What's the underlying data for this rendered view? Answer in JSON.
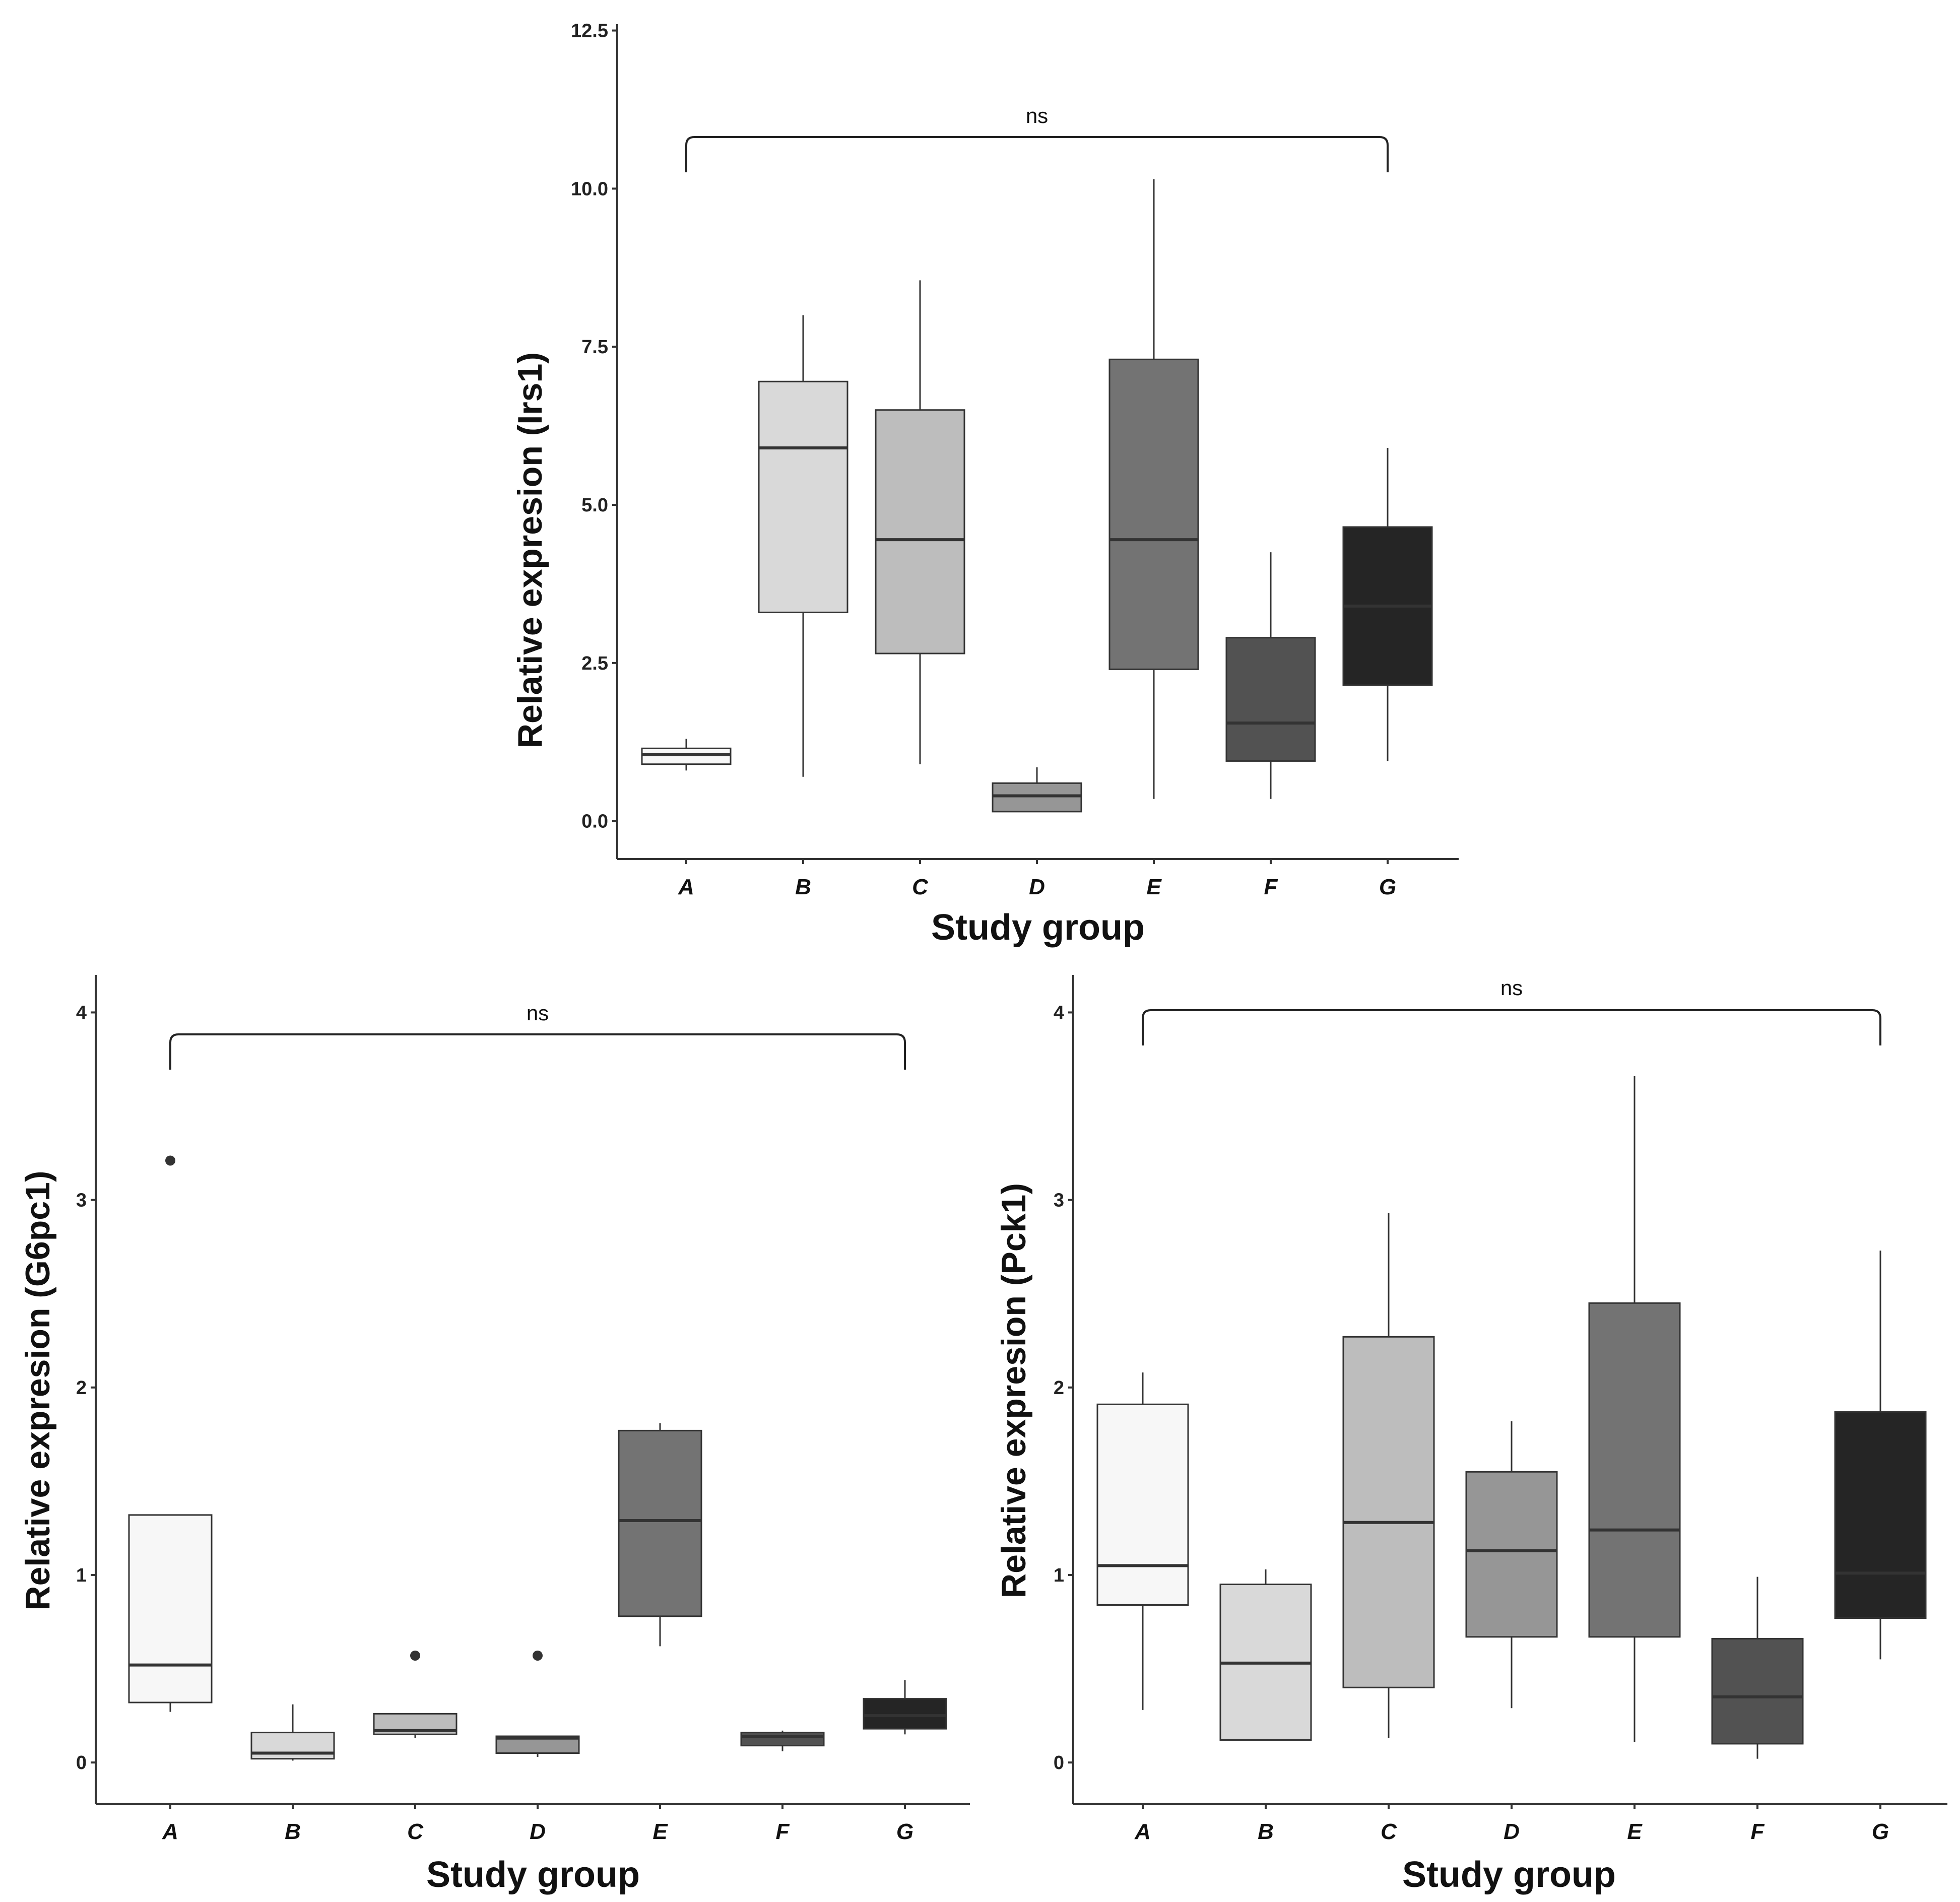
{
  "colors": {
    "A": "#f7f7f7",
    "B": "#d9d9d9",
    "C": "#bdbdbd",
    "D": "#969696",
    "E": "#737373",
    "F": "#525252",
    "G": "#252525",
    "stroke": "#333333"
  },
  "chart_data": [
    {
      "id": "irs1",
      "type": "boxplot",
      "title": "",
      "xlabel": "Study group",
      "ylabel": "Relative expresion (Irs1)",
      "categories": [
        "A",
        "B",
        "C",
        "D",
        "E",
        "F",
        "G"
      ],
      "ylim": [
        -0.6,
        12.6
      ],
      "yticks": [
        "0.0",
        "2.5",
        "5.0",
        "7.5",
        "10.0",
        "12.5"
      ],
      "ytick_values": [
        0,
        2.5,
        5,
        7.5,
        10,
        12.5
      ],
      "boxes": [
        {
          "group": "A",
          "whisker_low": 0.8,
          "q1": 0.9,
          "median": 1.05,
          "q3": 1.15,
          "whisker_high": 1.3,
          "outliers": []
        },
        {
          "group": "B",
          "whisker_low": 0.7,
          "q1": 3.3,
          "median": 5.9,
          "q3": 6.95,
          "whisker_high": 8.0,
          "outliers": []
        },
        {
          "group": "C",
          "whisker_low": 0.9,
          "q1": 2.65,
          "median": 4.45,
          "q3": 6.5,
          "whisker_high": 8.55,
          "outliers": []
        },
        {
          "group": "D",
          "whisker_low": 0.15,
          "q1": 0.15,
          "median": 0.4,
          "q3": 0.6,
          "whisker_high": 0.85,
          "outliers": []
        },
        {
          "group": "E",
          "whisker_low": 0.35,
          "q1": 2.4,
          "median": 4.45,
          "q3": 7.3,
          "whisker_high": 10.15,
          "outliers": []
        },
        {
          "group": "F",
          "whisker_low": 0.35,
          "q1": 0.95,
          "median": 1.55,
          "q3": 2.9,
          "whisker_high": 4.25,
          "outliers": []
        },
        {
          "group": "G",
          "whisker_low": 0.95,
          "q1": 2.15,
          "median": 3.4,
          "q3": 4.65,
          "whisker_high": 5.9,
          "outliers": []
        }
      ],
      "annotation": {
        "text": "ns",
        "from": "A",
        "to": "G"
      }
    },
    {
      "id": "g6pc1",
      "type": "boxplot",
      "title": "",
      "xlabel": "Study group",
      "ylabel": "Relative expresion (G6pc1)",
      "categories": [
        "A",
        "B",
        "C",
        "D",
        "E",
        "F",
        "G"
      ],
      "ylim": [
        -0.22,
        4.2
      ],
      "yticks": [
        "0",
        "1",
        "2",
        "3",
        "4"
      ],
      "ytick_values": [
        0,
        1,
        2,
        3,
        4
      ],
      "boxes": [
        {
          "group": "A",
          "whisker_low": 0.27,
          "q1": 0.32,
          "median": 0.52,
          "q3": 1.32,
          "whisker_high": 1.32,
          "outliers": [
            3.21
          ]
        },
        {
          "group": "B",
          "whisker_low": 0.01,
          "q1": 0.02,
          "median": 0.05,
          "q3": 0.16,
          "whisker_high": 0.31,
          "outliers": []
        },
        {
          "group": "C",
          "whisker_low": 0.13,
          "q1": 0.15,
          "median": 0.17,
          "q3": 0.26,
          "whisker_high": 0.26,
          "outliers": [
            0.57
          ]
        },
        {
          "group": "D",
          "whisker_low": 0.03,
          "q1": 0.05,
          "median": 0.13,
          "q3": 0.14,
          "whisker_high": 0.14,
          "outliers": [
            0.57
          ]
        },
        {
          "group": "E",
          "whisker_low": 0.62,
          "q1": 0.78,
          "median": 1.29,
          "q3": 1.77,
          "whisker_high": 1.81,
          "outliers": []
        },
        {
          "group": "F",
          "whisker_low": 0.06,
          "q1": 0.09,
          "median": 0.14,
          "q3": 0.16,
          "whisker_high": 0.17,
          "outliers": []
        },
        {
          "group": "G",
          "whisker_low": 0.15,
          "q1": 0.18,
          "median": 0.25,
          "q3": 0.34,
          "whisker_high": 0.44,
          "outliers": []
        }
      ],
      "annotation": {
        "text": "ns",
        "from": "A",
        "to": "G"
      }
    },
    {
      "id": "pck1",
      "type": "boxplot",
      "title": "",
      "xlabel": "Study group",
      "ylabel": "Relative expresion (Pck1)",
      "categories": [
        "A",
        "B",
        "C",
        "D",
        "E",
        "F",
        "G"
      ],
      "ylim": [
        -0.22,
        4.2
      ],
      "yticks": [
        "0",
        "1",
        "2",
        "3",
        "4"
      ],
      "ytick_values": [
        0,
        1,
        2,
        3,
        4
      ],
      "boxes": [
        {
          "group": "A",
          "whisker_low": 0.28,
          "q1": 0.84,
          "median": 1.05,
          "q3": 1.91,
          "whisker_high": 2.08,
          "outliers": []
        },
        {
          "group": "B",
          "whisker_low": 0.12,
          "q1": 0.12,
          "median": 0.53,
          "q3": 0.95,
          "whisker_high": 1.03,
          "outliers": []
        },
        {
          "group": "C",
          "whisker_low": 0.13,
          "q1": 0.4,
          "median": 1.28,
          "q3": 2.27,
          "whisker_high": 2.93,
          "outliers": []
        },
        {
          "group": "D",
          "whisker_low": 0.29,
          "q1": 0.67,
          "median": 1.13,
          "q3": 1.55,
          "whisker_high": 1.82,
          "outliers": []
        },
        {
          "group": "E",
          "whisker_low": 0.11,
          "q1": 0.67,
          "median": 1.24,
          "q3": 2.45,
          "whisker_high": 3.66,
          "outliers": []
        },
        {
          "group": "F",
          "whisker_low": 0.02,
          "q1": 0.1,
          "median": 0.35,
          "q3": 0.66,
          "whisker_high": 0.99,
          "outliers": []
        },
        {
          "group": "G",
          "whisker_low": 0.55,
          "q1": 0.77,
          "median": 1.01,
          "q3": 1.87,
          "whisker_high": 2.73,
          "outliers": []
        }
      ],
      "annotation": {
        "text": "ns",
        "from": "A",
        "to": "G"
      }
    }
  ]
}
